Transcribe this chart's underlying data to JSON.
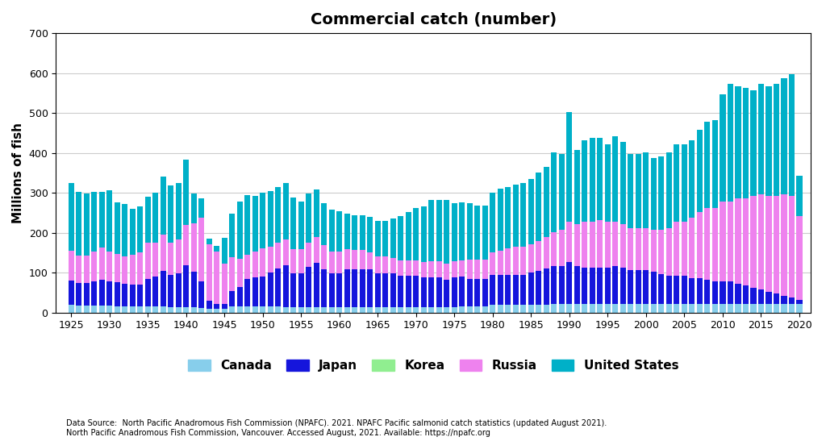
{
  "title": "Commercial catch (number)",
  "ylabel": "Millions of fish",
  "footnote": "Data Source:  North Pacific Anadromous Fish Commission (NPAFC). 2021. NPAFC Pacific salmonid catch statistics (updated August 2021).\nNorth Pacific Anadromous Fish Commission, Vancouver. Accessed August, 2021. Available: https://npafc.org",
  "ylim": [
    0,
    700
  ],
  "yticks": [
    0,
    100,
    200,
    300,
    400,
    500,
    600,
    700
  ],
  "colors": {
    "Canada": "#87CEEB",
    "Japan": "#1515DC",
    "Korea": "#90EE90",
    "Russia": "#EE82EE",
    "United States": "#00B0C8"
  },
  "years": [
    1925,
    1926,
    1927,
    1928,
    1929,
    1930,
    1931,
    1932,
    1933,
    1934,
    1935,
    1936,
    1937,
    1938,
    1939,
    1940,
    1941,
    1942,
    1943,
    1944,
    1945,
    1946,
    1947,
    1948,
    1949,
    1950,
    1951,
    1952,
    1953,
    1954,
    1955,
    1956,
    1957,
    1958,
    1959,
    1960,
    1961,
    1962,
    1963,
    1964,
    1965,
    1966,
    1967,
    1968,
    1969,
    1970,
    1971,
    1972,
    1973,
    1974,
    1975,
    1976,
    1977,
    1978,
    1979,
    1980,
    1981,
    1982,
    1983,
    1984,
    1985,
    1986,
    1987,
    1988,
    1989,
    1990,
    1991,
    1992,
    1993,
    1994,
    1995,
    1996,
    1997,
    1998,
    1999,
    2000,
    2001,
    2002,
    2003,
    2004,
    2005,
    2006,
    2007,
    2008,
    2009,
    2010,
    2011,
    2012,
    2013,
    2014,
    2015,
    2016,
    2017,
    2018,
    2019,
    2020
  ],
  "Canada": [
    20,
    18,
    18,
    17,
    17,
    17,
    16,
    16,
    15,
    15,
    15,
    15,
    15,
    14,
    14,
    14,
    13,
    12,
    10,
    10,
    10,
    15,
    16,
    16,
    16,
    15,
    15,
    15,
    14,
    14,
    14,
    14,
    14,
    13,
    13,
    13,
    13,
    13,
    13,
    13,
    13,
    13,
    13,
    13,
    13,
    13,
    13,
    13,
    13,
    13,
    13,
    15,
    15,
    15,
    15,
    20,
    20,
    20,
    20,
    20,
    20,
    20,
    20,
    22,
    22,
    22,
    22,
    22,
    22,
    22,
    22,
    22,
    22,
    22,
    22,
    22,
    22,
    22,
    22,
    22,
    22,
    22,
    22,
    22,
    22,
    22,
    22,
    22,
    22,
    22,
    22,
    22,
    22,
    22,
    22,
    22
  ],
  "Japan": [
    60,
    55,
    55,
    60,
    65,
    60,
    60,
    55,
    55,
    55,
    70,
    75,
    90,
    80,
    85,
    105,
    90,
    65,
    20,
    12,
    12,
    38,
    48,
    68,
    72,
    75,
    85,
    95,
    105,
    85,
    85,
    100,
    110,
    95,
    85,
    85,
    95,
    95,
    95,
    95,
    85,
    85,
    85,
    80,
    80,
    80,
    75,
    75,
    75,
    70,
    75,
    75,
    70,
    70,
    70,
    75,
    75,
    75,
    75,
    75,
    80,
    85,
    90,
    95,
    95,
    105,
    95,
    90,
    90,
    90,
    90,
    95,
    90,
    85,
    85,
    85,
    80,
    75,
    70,
    70,
    70,
    65,
    65,
    60,
    55,
    55,
    55,
    50,
    45,
    40,
    35,
    30,
    25,
    20,
    15,
    10
  ],
  "Korea": [
    0,
    0,
    0,
    0,
    0,
    0,
    0,
    0,
    0,
    0,
    0,
    0,
    0,
    0,
    0,
    0,
    0,
    0,
    0,
    0,
    0,
    0,
    0,
    0,
    0,
    0,
    0,
    0,
    0,
    0,
    0,
    0,
    0,
    0,
    0,
    0,
    0,
    0,
    0,
    0,
    0,
    0,
    0,
    0,
    0,
    0,
    0,
    0,
    0,
    0,
    0,
    0,
    0,
    0,
    0,
    0,
    0,
    0,
    0,
    0,
    0,
    0,
    0,
    0,
    0,
    0,
    0,
    0,
    0,
    0,
    0,
    0,
    0,
    0,
    0,
    0,
    0,
    0,
    0,
    0,
    0,
    0,
    0,
    0,
    0,
    0,
    0,
    0,
    0,
    0,
    0,
    0,
    0,
    0,
    0,
    0
  ],
  "Russia": [
    75,
    70,
    70,
    75,
    80,
    75,
    70,
    70,
    75,
    80,
    90,
    85,
    90,
    80,
    85,
    100,
    120,
    160,
    140,
    130,
    100,
    85,
    70,
    60,
    65,
    70,
    65,
    65,
    65,
    60,
    60,
    60,
    65,
    60,
    55,
    55,
    50,
    48,
    48,
    43,
    43,
    43,
    38,
    38,
    38,
    38,
    38,
    40,
    40,
    40,
    40,
    40,
    48,
    48,
    48,
    55,
    60,
    65,
    70,
    70,
    70,
    75,
    80,
    85,
    90,
    100,
    105,
    115,
    115,
    120,
    115,
    110,
    110,
    105,
    105,
    105,
    105,
    110,
    120,
    135,
    135,
    150,
    165,
    180,
    185,
    200,
    200,
    215,
    220,
    230,
    240,
    240,
    245,
    255,
    255,
    210
  ],
  "United States": [
    170,
    160,
    155,
    150,
    140,
    155,
    130,
    130,
    115,
    115,
    115,
    125,
    145,
    145,
    140,
    165,
    75,
    50,
    15,
    15,
    65,
    110,
    145,
    150,
    140,
    140,
    140,
    140,
    140,
    130,
    120,
    125,
    120,
    105,
    105,
    100,
    90,
    88,
    88,
    88,
    88,
    88,
    100,
    110,
    120,
    130,
    140,
    155,
    155,
    160,
    145,
    145,
    140,
    135,
    135,
    150,
    155,
    155,
    155,
    160,
    165,
    170,
    175,
    200,
    190,
    275,
    185,
    205,
    210,
    205,
    195,
    215,
    205,
    185,
    185,
    190,
    180,
    185,
    190,
    195,
    195,
    195,
    205,
    215,
    220,
    270,
    295,
    280,
    275,
    265,
    275,
    275,
    280,
    290,
    305,
    100
  ]
}
